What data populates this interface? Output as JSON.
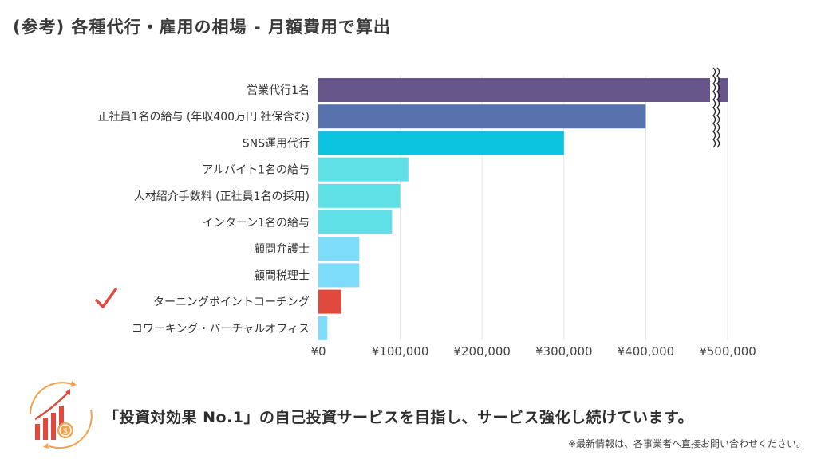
{
  "title": "(参考) 各種代行・雇用の相場 - 月額費用で算出",
  "chart_data": {
    "type": "bar",
    "orientation": "horizontal",
    "categories": [
      "営業代行1名",
      "正社員1名の給与 (年収400万円 社保含む)",
      "SNS運用代行",
      "アルバイト1名の給与",
      "人材紹介手数料 (正社員1名の採用)",
      "インターン1名の給与",
      "顧問弁護士",
      "顧問税理士",
      "ターニングポイントコーチング",
      "コワーキング・バーチャルオフィス"
    ],
    "values": [
      500000,
      400000,
      300000,
      110000,
      100000,
      90000,
      50000,
      50000,
      28000,
      11000
    ],
    "colors": [
      "#67568a",
      "#5872ad",
      "#0cc3e0",
      "#5ee0e6",
      "#5ee0e6",
      "#5ee0e6",
      "#7edcfb",
      "#7edcfb",
      "#e04a3e",
      "#7edcfb"
    ],
    "axis_break_on": "営業代行1名",
    "highlight": "ターニングポイントコーチング",
    "xlim": [
      0,
      500000
    ],
    "xticks": [
      0,
      100000,
      200000,
      300000,
      400000,
      500000
    ],
    "xtick_labels": [
      "¥0",
      "¥100,000",
      "¥200,000",
      "¥300,000",
      "¥400,000",
      "¥500,000"
    ],
    "grid": true
  },
  "slogan": "「投資対効果 No.1」の自己投資サービスを目指し、サービス強化し続けています。",
  "note": "※最新情報は、各事業者へ直接お問い合わせください。"
}
